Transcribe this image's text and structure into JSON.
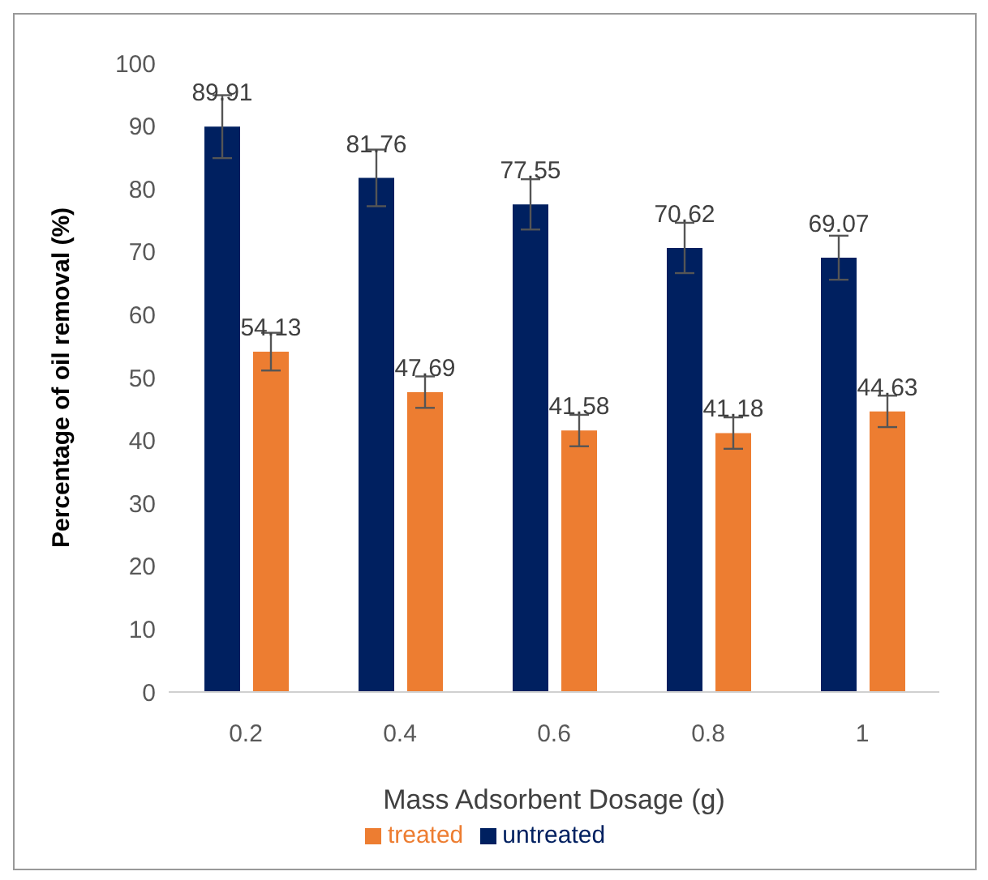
{
  "chart_data": {
    "type": "bar",
    "xlabel": "Mass Adsorbent Dosage (g)",
    "ylabel": "Percentage of oil removal (%)",
    "categories": [
      "0.2",
      "0.4",
      "0.6",
      "0.8",
      "1"
    ],
    "series": [
      {
        "name": "untreated",
        "color": "#002060",
        "values": [
          89.91,
          81.76,
          77.55,
          70.62,
          69.07
        ],
        "errors": [
          5,
          4.5,
          4,
          4,
          3.5
        ]
      },
      {
        "name": "treated",
        "color": "#ed7d31",
        "values": [
          54.13,
          47.69,
          41.58,
          41.18,
          44.63
        ],
        "errors": [
          3,
          2.5,
          2.5,
          2.5,
          2.5
        ]
      }
    ],
    "ylim": [
      0,
      100
    ],
    "yticks": [
      0,
      10,
      20,
      30,
      40,
      50,
      60,
      70,
      80,
      90,
      100
    ],
    "data_labels": true,
    "grid": false,
    "legend": "bottom"
  }
}
